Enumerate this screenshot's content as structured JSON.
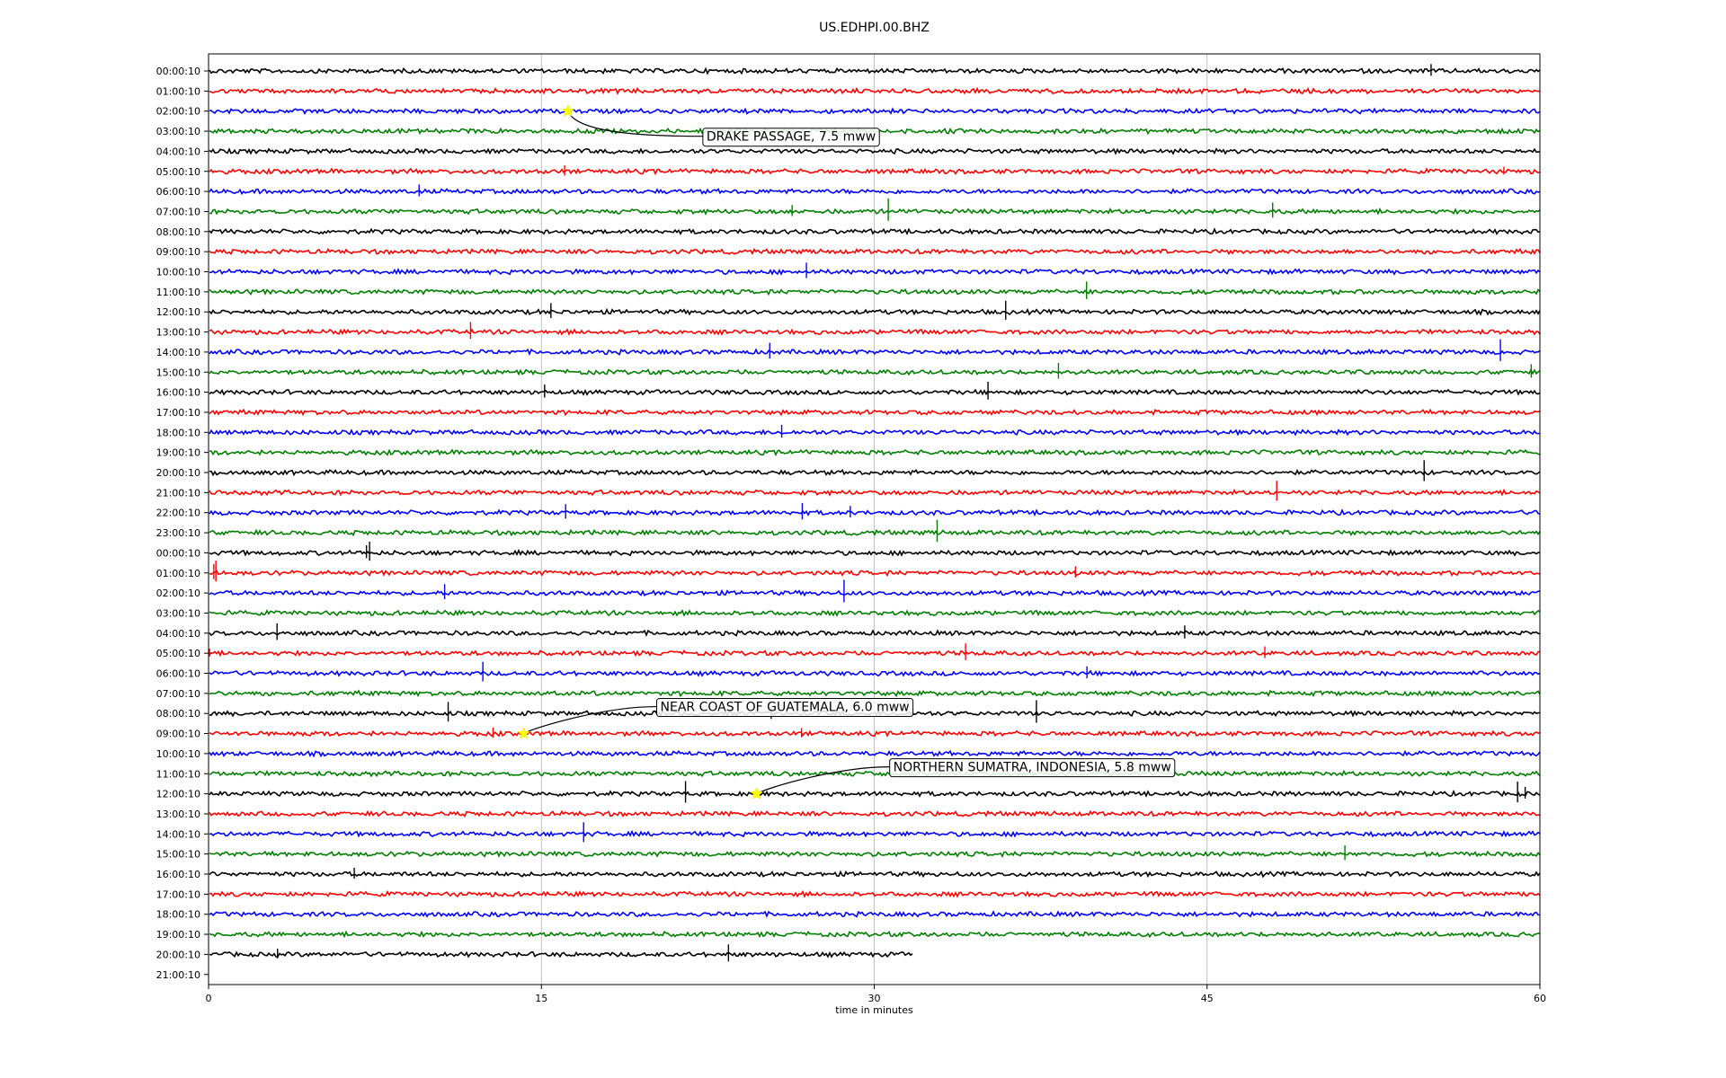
{
  "chart_data": {
    "type": "line",
    "title": "US.EDHPI.00.BHZ",
    "xlabel": "time in minutes",
    "ylabel": "",
    "xlim": [
      0,
      60
    ],
    "x_ticks": [
      0,
      15,
      30,
      45,
      60
    ],
    "grid": "vertical lines at x ticks",
    "trace_colors": [
      "#000000",
      "#ff0000",
      "#0000ff",
      "#008000"
    ],
    "trace_end_minute_last_row": 31.8,
    "row_labels": [
      "00:00:10",
      "01:00:10",
      "02:00:10",
      "03:00:10",
      "04:00:10",
      "05:00:10",
      "06:00:10",
      "07:00:10",
      "08:00:10",
      "09:00:10",
      "10:00:10",
      "11:00:10",
      "12:00:10",
      "13:00:10",
      "14:00:10",
      "15:00:10",
      "16:00:10",
      "17:00:10",
      "18:00:10",
      "19:00:10",
      "20:00:10",
      "21:00:10",
      "22:00:10",
      "23:00:10",
      "00:00:10",
      "01:00:10",
      "02:00:10",
      "03:00:10",
      "04:00:10",
      "05:00:10",
      "06:00:10",
      "07:00:10",
      "08:00:10",
      "09:00:10",
      "10:00:10",
      "11:00:10",
      "12:00:10",
      "13:00:10",
      "14:00:10",
      "15:00:10",
      "16:00:10",
      "17:00:10",
      "18:00:10",
      "19:00:10",
      "20:00:10",
      "21:00:10"
    ],
    "events": [
      {
        "row": 2,
        "minute": 16.2,
        "label": "DRAKE PASSAGE, 7.5 mww"
      },
      {
        "row": 33,
        "minute": 14.2,
        "label": "NEAR COAST OF GUATEMALA, 6.0 mww"
      },
      {
        "row": 36,
        "minute": 24.7,
        "label": "NORTHERN SUMATRA, INDONESIA, 5.8 mww"
      }
    ]
  }
}
